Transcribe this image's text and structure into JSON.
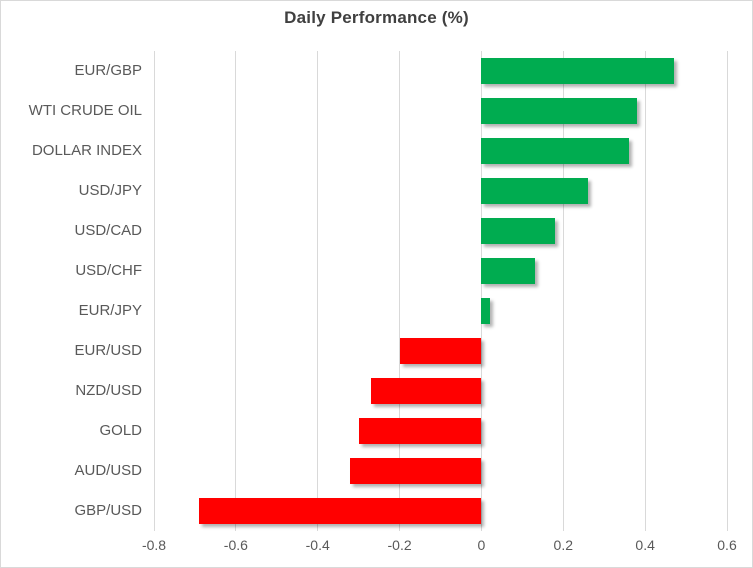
{
  "chart_data": {
    "type": "bar",
    "orientation": "horizontal",
    "title": "Daily Performance (%)",
    "categories": [
      "EUR/GBP",
      "WTI CRUDE OIL",
      "DOLLAR INDEX",
      "USD/JPY",
      "USD/CAD",
      "USD/CHF",
      "EUR/JPY",
      "EUR/USD",
      "NZD/USD",
      "GOLD",
      "AUD/USD",
      "GBP/USD"
    ],
    "values": [
      0.47,
      0.38,
      0.36,
      0.26,
      0.18,
      0.13,
      0.02,
      -0.2,
      -0.27,
      -0.3,
      -0.32,
      -0.69
    ],
    "xlabel": "",
    "ylabel": "",
    "xlim": [
      -0.8,
      0.6
    ],
    "xticks": [
      -0.8,
      -0.6,
      -0.4,
      -0.2,
      0,
      0.2,
      0.4,
      0.6
    ],
    "xtick_labels": [
      "-0.8",
      "-0.6",
      "-0.4",
      "-0.2",
      "0",
      "0.2",
      "0.4",
      "0.6"
    ],
    "grid": "vertical-gridlines-on",
    "legend": "none",
    "colors": {
      "positive_bar": "#00AC50",
      "negative_bar": "#FF0000",
      "gridline": "#D9D9D9",
      "frame_border": "#D9D9D9",
      "title_text": "#404040",
      "axis_text": "#595959"
    }
  }
}
